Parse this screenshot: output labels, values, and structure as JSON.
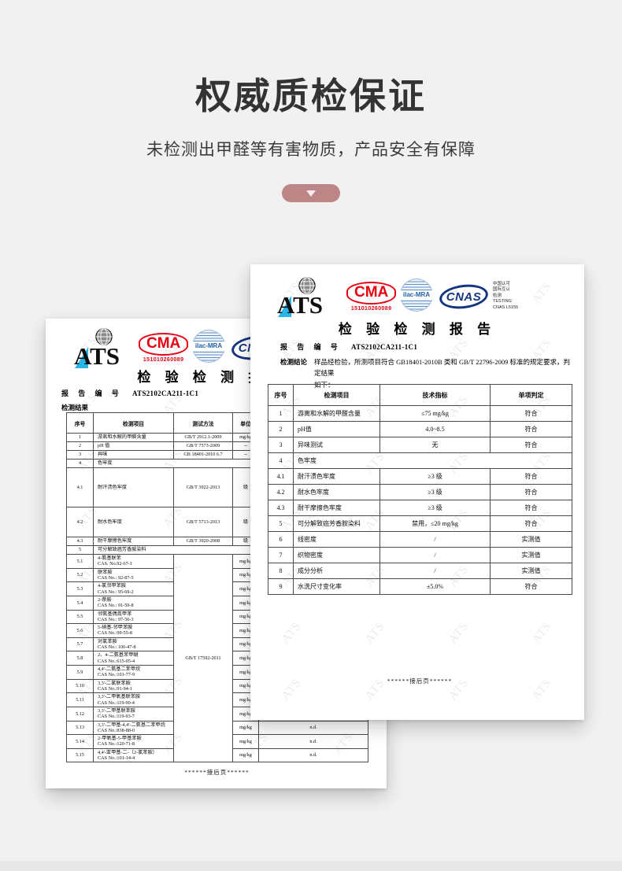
{
  "hero": {
    "title": "权威质检保证",
    "subtitle": "未检测出甲醛等有害物质，产品安全有保障"
  },
  "watermark": {
    "text": "ATS"
  },
  "colors": {
    "accent_pill": "#bd8686",
    "cma_red": "#e60012",
    "cnas_blue": "#16357f",
    "ilac_blue": "#4a7db5",
    "ats_cyan": "#2ab5e8"
  },
  "logos": {
    "ats": "ATS",
    "cma": "CMA",
    "cma_number": "151010260089",
    "ilac": "ilac-MRA",
    "cnas": "CNAS",
    "cnas_side": [
      "中国认可",
      "国际互认",
      "检测",
      "TESTING",
      "CNAS L5155"
    ]
  },
  "report": {
    "title": "检 验 检 测 报 告",
    "no_label": "报 告 编 号",
    "no": "ATS2102CA211-1C1"
  },
  "front_report": {
    "conclusion_label": "检测结论",
    "conclusion_text": "样品经检验，所测项目符合 GB18401-2010B 类和 GB/T 22796-2009 标准的规定要求，判定结果\n如下：",
    "footer_note": "******接后页******",
    "table": {
      "headers": [
        "序号",
        "检测项目",
        "技术指标",
        "单项判定"
      ],
      "rows": [
        [
          "1",
          "游离和水解的甲醛含量",
          "≤75 mg/kg",
          "符合"
        ],
        [
          "2",
          "pH值",
          "4.0~8.5",
          "符合"
        ],
        [
          "3",
          "异味测试",
          "无",
          "符合"
        ],
        [
          "4",
          {
            "text": "色牢度",
            "span": 3
          }
        ],
        [
          "4.1",
          "耐汗渍色牢度",
          "≥3 级",
          "符合"
        ],
        [
          "4.2",
          "耐水色牢度",
          "≥3 级",
          "符合"
        ],
        [
          "4.3",
          "耐干摩擦色牢度",
          "≥3 级",
          "符合"
        ],
        [
          "5",
          "可分解致癌芳香胺染料",
          "禁用，≤20 mg/kg",
          "符合"
        ],
        [
          "6",
          "线密度",
          "/",
          "实测值"
        ],
        [
          "7",
          "织物密度",
          "/",
          "实测值"
        ],
        [
          "8",
          "成分分析",
          "/",
          "实测值"
        ],
        [
          "9",
          "水洗尺寸变化率",
          "±5.0%",
          "符合"
        ]
      ]
    }
  },
  "back_report": {
    "result_label": "检测结果",
    "footer_note": "******接后页******",
    "table": {
      "headers": [
        "序号",
        "检测项目",
        "测试方法",
        "单位",
        ""
      ],
      "rows": [
        [
          "1",
          "游离和水解的甲醛含量",
          "GB/T 2912.1-2009",
          "mg/kg",
          ""
        ],
        [
          "2",
          "pH 值",
          "GB/T 7573-2009",
          "--",
          ""
        ],
        [
          "3",
          "异味",
          "GB 18401-2010 6.7",
          "--",
          ""
        ],
        [
          "4",
          {
            "text": "色牢度",
            "span": 4
          }
        ],
        {
          "h": 50,
          "cells": [
            "4.1",
            "耐汗渍色牢度",
            "GB/T 3922-2013",
            "级",
            ""
          ]
        },
        {
          "h": 38,
          "cells": [
            "4.2",
            "耐水色牢度",
            "GB/T 5713-2013",
            "级",
            ""
          ]
        },
        [
          "4.3",
          "耐干摩擦色牢度",
          "GB/T 3920-2008",
          "级",
          ""
        ],
        [
          "5",
          {
            "text": "可分解致癌芳香胺染料",
            "span": 4
          }
        ],
        [
          "5.1",
          "4-氨基联苯\nCAS. No.92-67-1",
          {
            "text": "GB/T 17592-2011",
            "rowspan": 15
          },
          "mg/kg",
          ""
        ],
        [
          "5.2",
          "联苯胺\nCAS No.: 92-87-5",
          "mg/kg",
          ""
        ],
        [
          "5.3",
          "4-氯邻甲苯胺\nCAS No.: 95-69-2",
          "mg/kg",
          ""
        ],
        [
          "5.4",
          "2-萘胺\nCAS No.: 91-59-8",
          "mg/kg",
          ""
        ],
        [
          "5.5",
          "邻氨基偶氮甲苯\nCAS No.: 97-56-3",
          "mg/kg",
          ""
        ],
        [
          "5.6",
          "5-硝基-邻甲苯胺\nCAS No.:99-55-8",
          "mg/kg",
          ""
        ],
        [
          "5.7",
          "对氯苯胺\nCAS No.: 106-47-8",
          "mg/kg",
          ""
        ],
        [
          "5.8",
          "2、4-二氨基苯甲醚\nCAS No.:615-05-4",
          "mg/kg",
          ""
        ],
        [
          "5.9",
          "4,4'-二氨基二苯甲烷\nCAS No.:101-77-9",
          "mg/kg",
          ""
        ],
        [
          "5.10",
          "3,3'-二氯联苯胺\nCAS No.:91-94-1",
          "mg/kg",
          ""
        ],
        [
          "5.11",
          "3,3'-二甲氧基联苯胺\nCAS No.:119-90-4",
          "mg/kg",
          ""
        ],
        [
          "5.12",
          "3,3'-二甲基联苯胺\nCAS No.:119-93-7",
          "mg/kg",
          ""
        ],
        [
          "5.13",
          "3,3'-二甲基-4,4'-二氨基二苯甲烷\nCAS No.:838-88-0",
          "mg/kg",
          "n.d."
        ],
        [
          "5.14",
          "2-甲氧基-5-甲基苯胺\nCAS No.:120-71-8",
          "mg/kg",
          "n.d."
        ],
        [
          "5.15",
          "4,4'-亚甲基-二-（2-氯苯胺）\nCAS No.:101-14-4",
          "mg/kg",
          "n.d."
        ]
      ]
    }
  }
}
